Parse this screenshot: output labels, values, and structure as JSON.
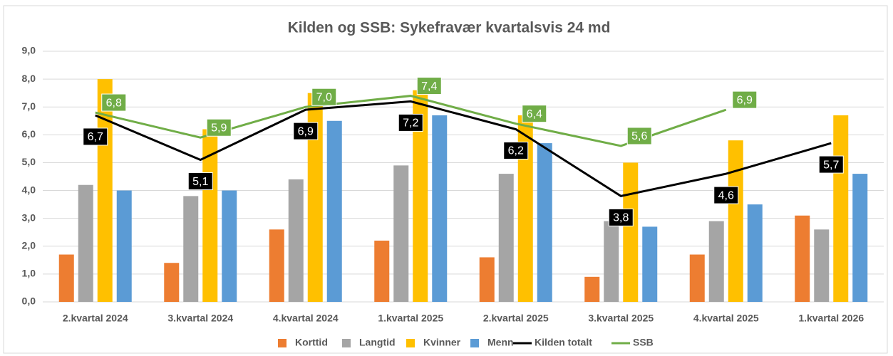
{
  "chart_data": {
    "type": "bar",
    "title": "Kilden og SSB: Sykefravær kvartalsvis 24 md",
    "categories": [
      "2.kvartal 2024",
      "3.kvartal 2024",
      "4.kvartal 2024",
      "1.kvartal 2025",
      "2.kvartal 2025",
      "3.kvartal 2025",
      "4.kvartal 2025",
      "1.kvartal 2026"
    ],
    "series": [
      {
        "name": "Korttid",
        "color": "#ed7d31",
        "values": [
          1.7,
          1.4,
          2.6,
          2.2,
          1.6,
          0.9,
          1.7,
          3.1
        ]
      },
      {
        "name": "Langtid",
        "color": "#a5a5a5",
        "values": [
          4.2,
          3.8,
          4.4,
          4.9,
          4.6,
          2.9,
          2.9,
          2.6
        ]
      },
      {
        "name": "Kvinner",
        "color": "#ffc000",
        "values": [
          8.0,
          6.2,
          7.5,
          7.6,
          6.7,
          5.0,
          5.8,
          6.7
        ]
      },
      {
        "name": "Menn",
        "color": "#5b9bd5",
        "values": [
          4.0,
          4.0,
          6.5,
          6.7,
          5.7,
          2.7,
          3.5,
          4.6
        ]
      },
      {
        "name": "Kilden totalt",
        "color": "#000000",
        "type": "line",
        "values": [
          6.7,
          5.1,
          6.9,
          7.2,
          6.2,
          3.8,
          4.6,
          5.7
        ],
        "value_labels": [
          "6,7",
          "5,1",
          "6,9",
          "7,2",
          "6,2",
          "3,8",
          "4,6",
          "5,7"
        ]
      },
      {
        "name": "SSB",
        "color": "#70ad47",
        "type": "line",
        "values": [
          6.8,
          5.9,
          7.0,
          7.4,
          6.4,
          5.6,
          6.9,
          null
        ],
        "value_labels": [
          "6,8",
          "5,9",
          "7,0",
          "7,4",
          "6,4",
          "5,6",
          "6,9",
          null
        ]
      }
    ],
    "ylim": [
      0,
      9
    ],
    "yticks": [
      {
        "value": 0,
        "label": "0,0"
      },
      {
        "value": 1,
        "label": "1,0"
      },
      {
        "value": 2,
        "label": "2,0"
      },
      {
        "value": 3,
        "label": "3,0"
      },
      {
        "value": 4,
        "label": "4,0"
      },
      {
        "value": 5,
        "label": "5,0"
      },
      {
        "value": 6,
        "label": "6,0"
      },
      {
        "value": 7,
        "label": "7,0"
      },
      {
        "value": 8,
        "label": "8,0"
      },
      {
        "value": 9,
        "label": "9,0"
      }
    ],
    "grid": true,
    "legend": "bottom"
  }
}
